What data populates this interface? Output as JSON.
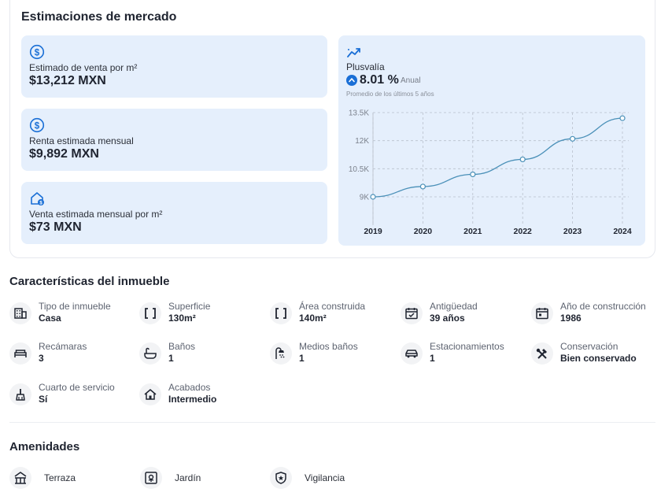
{
  "market": {
    "title": "Estimaciones de mercado",
    "stats": [
      {
        "icon": "dollar-circle-icon",
        "label": "Estimado de venta por m²",
        "value": "$13,212 MXN"
      },
      {
        "icon": "dollar-circle-icon",
        "label": "Renta estimada mensual",
        "value": "$9,892 MXN"
      },
      {
        "icon": "house-dollar-icon",
        "label": "Venta estimada mensual por m²",
        "value": "$73 MXN"
      }
    ],
    "plusvalia": {
      "title": "Plusvalía",
      "pct": "8.01 %",
      "period": "Anual",
      "subtitle": "Promedio de los últimos 5 años"
    }
  },
  "chart_data": {
    "type": "line",
    "title": "Plusvalía",
    "x": [
      "2019",
      "2020",
      "2021",
      "2022",
      "2023",
      "2024"
    ],
    "values": [
      9000,
      9550,
      10200,
      11000,
      12100,
      13200
    ],
    "yticks": [
      9000,
      10500,
      12000,
      13500
    ],
    "ytick_labels": [
      "9K",
      "10.5K",
      "12K",
      "13.5K"
    ],
    "ylim": [
      9000,
      13500
    ],
    "grid": true,
    "color": "#4a90b8"
  },
  "features": {
    "title": "Características del inmueble",
    "items": [
      {
        "icon": "building-icon",
        "label": "Tipo de inmueble",
        "value": "Casa"
      },
      {
        "icon": "brackets-icon",
        "label": "Superficie",
        "value": "130m²"
      },
      {
        "icon": "brackets-icon",
        "label": "Área construida",
        "value": "140m²"
      },
      {
        "icon": "calendar-check-icon",
        "label": "Antigüedad",
        "value": "39 años"
      },
      {
        "icon": "calendar-icon",
        "label": "Año de construcción",
        "value": "1986"
      },
      {
        "icon": "bed-icon",
        "label": "Recámaras",
        "value": "3"
      },
      {
        "icon": "bathtub-icon",
        "label": "Baños",
        "value": "1"
      },
      {
        "icon": "shower-icon",
        "label": "Medios baños",
        "value": "1"
      },
      {
        "icon": "car-icon",
        "label": "Estacionamientos",
        "value": "1"
      },
      {
        "icon": "tools-icon",
        "label": "Conservación",
        "value": "Bien conservado"
      },
      {
        "icon": "broom-icon",
        "label": "Cuarto de servicio",
        "value": "Sí"
      },
      {
        "icon": "house-icon",
        "label": "Acabados",
        "value": "Intermedio"
      }
    ]
  },
  "amenities": {
    "title": "Amenidades",
    "items": [
      {
        "icon": "terrace-icon",
        "label": "Terraza"
      },
      {
        "icon": "garden-icon",
        "label": "Jardín"
      },
      {
        "icon": "shield-star-icon",
        "label": "Vigilancia"
      }
    ]
  }
}
